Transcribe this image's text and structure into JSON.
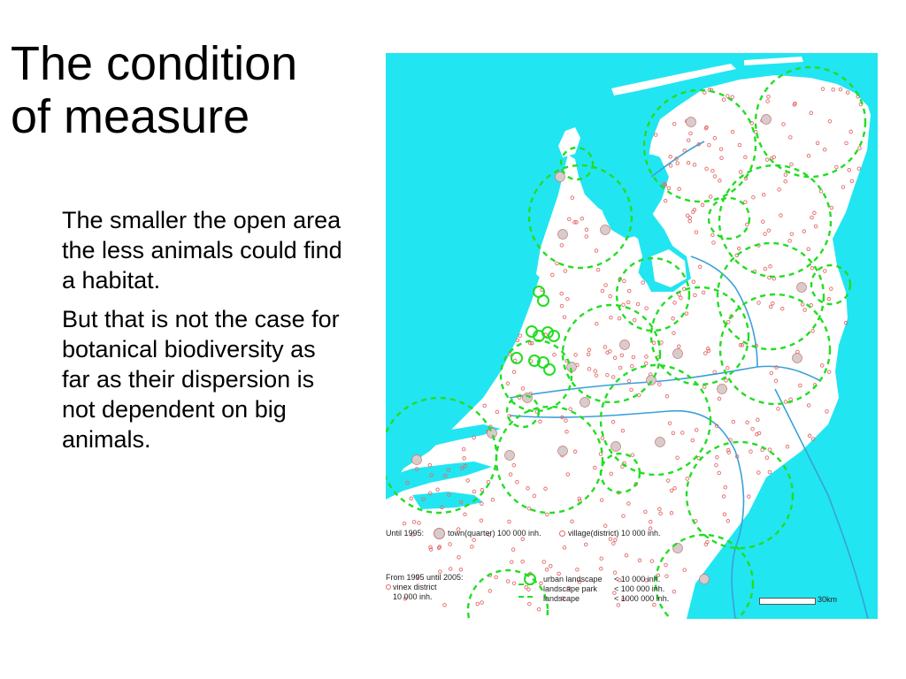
{
  "slide": {
    "title_line1": "The condition",
    "title_line2": "of measure",
    "paragraph1": "The smaller the open area the less animals could find a habitat.",
    "paragraph2": "But that is not the case for botanical biodiversity as far as their dispersion is not dependent on big animals."
  },
  "map": {
    "sea_color": "#22e5f2",
    "land_color": "#ffffff",
    "river_color": "#3aa0d8",
    "zone_color": "#22dd22",
    "settlement_color": "#e46a6a",
    "town_fill": "#d7cccc",
    "legend": {
      "until_1995": "Until 1995:",
      "town": "town(quarter) 100 000 inh.",
      "village": "village(district) 10 000 inh.",
      "from_1995": "From 1995 until 2005:",
      "vinex_line1": "vinex district",
      "vinex_line2": "10 000 inh.",
      "urban_landscape": "urban landscape",
      "urban_landscape_value": "< 10 000 inh.",
      "landscape_park": "landscape park",
      "landscape_park_value": "< 100 000 inh.",
      "landscape": "landscape",
      "landscape_value": "< 1000 000 inh.",
      "scale": "30km"
    }
  }
}
